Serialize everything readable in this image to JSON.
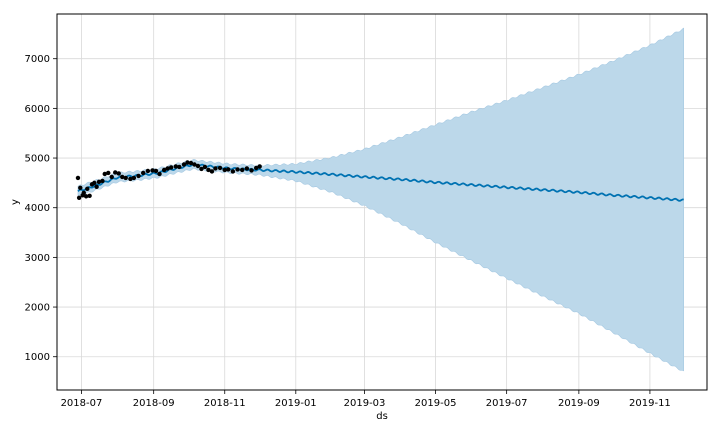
{
  "chart_data": {
    "type": "line",
    "title": "",
    "xlabel": "ds",
    "ylabel": "y",
    "xlim": [
      "2018-06-10",
      "2019-12-20"
    ],
    "ylim": [
      330,
      7900
    ],
    "grid": true,
    "colors": {
      "forecast": "#0072B2",
      "interval": "#bcd8ea",
      "observed": "#000000",
      "grid": "#d9d9d9",
      "frame": "#000000"
    },
    "x_ticks": [
      {
        "date": "2018-07-01",
        "label": "2018-07"
      },
      {
        "date": "2018-09-01",
        "label": "2018-09"
      },
      {
        "date": "2018-11-01",
        "label": "2018-11"
      },
      {
        "date": "2019-01-01",
        "label": "2019-01"
      },
      {
        "date": "2019-03-01",
        "label": "2019-03"
      },
      {
        "date": "2019-05-01",
        "label": "2019-05"
      },
      {
        "date": "2019-07-01",
        "label": "2019-07"
      },
      {
        "date": "2019-09-01",
        "label": "2019-09"
      },
      {
        "date": "2019-11-01",
        "label": "2019-11"
      }
    ],
    "y_ticks": [
      {
        "value": 1000,
        "label": "1000"
      },
      {
        "value": 2000,
        "label": "2000"
      },
      {
        "value": 3000,
        "label": "3000"
      },
      {
        "value": 4000,
        "label": "4000"
      },
      {
        "value": 5000,
        "label": "5000"
      },
      {
        "value": 6000,
        "label": "6000"
      },
      {
        "value": 7000,
        "label": "7000"
      }
    ],
    "forecast": {
      "x": [
        "2018-06-28",
        "2018-07-15",
        "2018-08-01",
        "2018-08-20",
        "2018-09-05",
        "2018-09-20",
        "2018-10-05",
        "2018-10-20",
        "2018-11-05",
        "2018-11-20",
        "2018-12-01",
        "2019-01-01",
        "2019-02-01",
        "2019-03-01",
        "2019-04-01",
        "2019-05-01",
        "2019-06-01",
        "2019-07-01",
        "2019-08-01",
        "2019-09-01",
        "2019-10-01",
        "2019-11-01",
        "2019-11-30"
      ],
      "yhat": [
        4330,
        4460,
        4610,
        4650,
        4700,
        4790,
        4870,
        4830,
        4790,
        4770,
        4760,
        4720,
        4670,
        4620,
        4570,
        4510,
        4460,
        4410,
        4360,
        4310,
        4250,
        4200,
        4150
      ],
      "yhat_lower": [
        4230,
        4370,
        4520,
        4560,
        4610,
        4700,
        4780,
        4740,
        4700,
        4680,
        4660,
        4540,
        4310,
        4040,
        3680,
        3300,
        2930,
        2580,
        2220,
        1870,
        1480,
        1070,
        700
      ],
      "yhat_upper": [
        4430,
        4560,
        4700,
        4740,
        4790,
        4880,
        4960,
        4920,
        4880,
        4860,
        4850,
        4880,
        5010,
        5180,
        5420,
        5670,
        5930,
        6160,
        6420,
        6680,
        6960,
        7270,
        7600
      ]
    },
    "observed": {
      "x": [
        "2018-06-28",
        "2018-06-29",
        "2018-06-30",
        "2018-07-02",
        "2018-07-03",
        "2018-07-05",
        "2018-07-06",
        "2018-07-08",
        "2018-07-10",
        "2018-07-12",
        "2018-07-14",
        "2018-07-16",
        "2018-07-19",
        "2018-07-21",
        "2018-07-24",
        "2018-07-27",
        "2018-07-30",
        "2018-08-02",
        "2018-08-05",
        "2018-08-08",
        "2018-08-12",
        "2018-08-15",
        "2018-08-19",
        "2018-08-23",
        "2018-08-27",
        "2018-08-31",
        "2018-09-03",
        "2018-09-06",
        "2018-09-10",
        "2018-09-13",
        "2018-09-16",
        "2018-09-20",
        "2018-09-23",
        "2018-09-27",
        "2018-09-30",
        "2018-10-03",
        "2018-10-06",
        "2018-10-09",
        "2018-10-12",
        "2018-10-15",
        "2018-10-18",
        "2018-10-21",
        "2018-10-24",
        "2018-10-28",
        "2018-11-01",
        "2018-11-04",
        "2018-11-08",
        "2018-11-12",
        "2018-11-16",
        "2018-11-20",
        "2018-11-24",
        "2018-11-28",
        "2018-12-01"
      ],
      "y": [
        4600,
        4200,
        4400,
        4250,
        4300,
        4230,
        4380,
        4240,
        4470,
        4500,
        4420,
        4520,
        4540,
        4680,
        4700,
        4620,
        4710,
        4690,
        4620,
        4600,
        4580,
        4600,
        4640,
        4700,
        4740,
        4750,
        4740,
        4680,
        4760,
        4790,
        4810,
        4830,
        4820,
        4870,
        4910,
        4900,
        4870,
        4840,
        4780,
        4820,
        4760,
        4730,
        4790,
        4800,
        4760,
        4770,
        4730,
        4770,
        4760,
        4790,
        4750,
        4800,
        4830
      ]
    }
  }
}
